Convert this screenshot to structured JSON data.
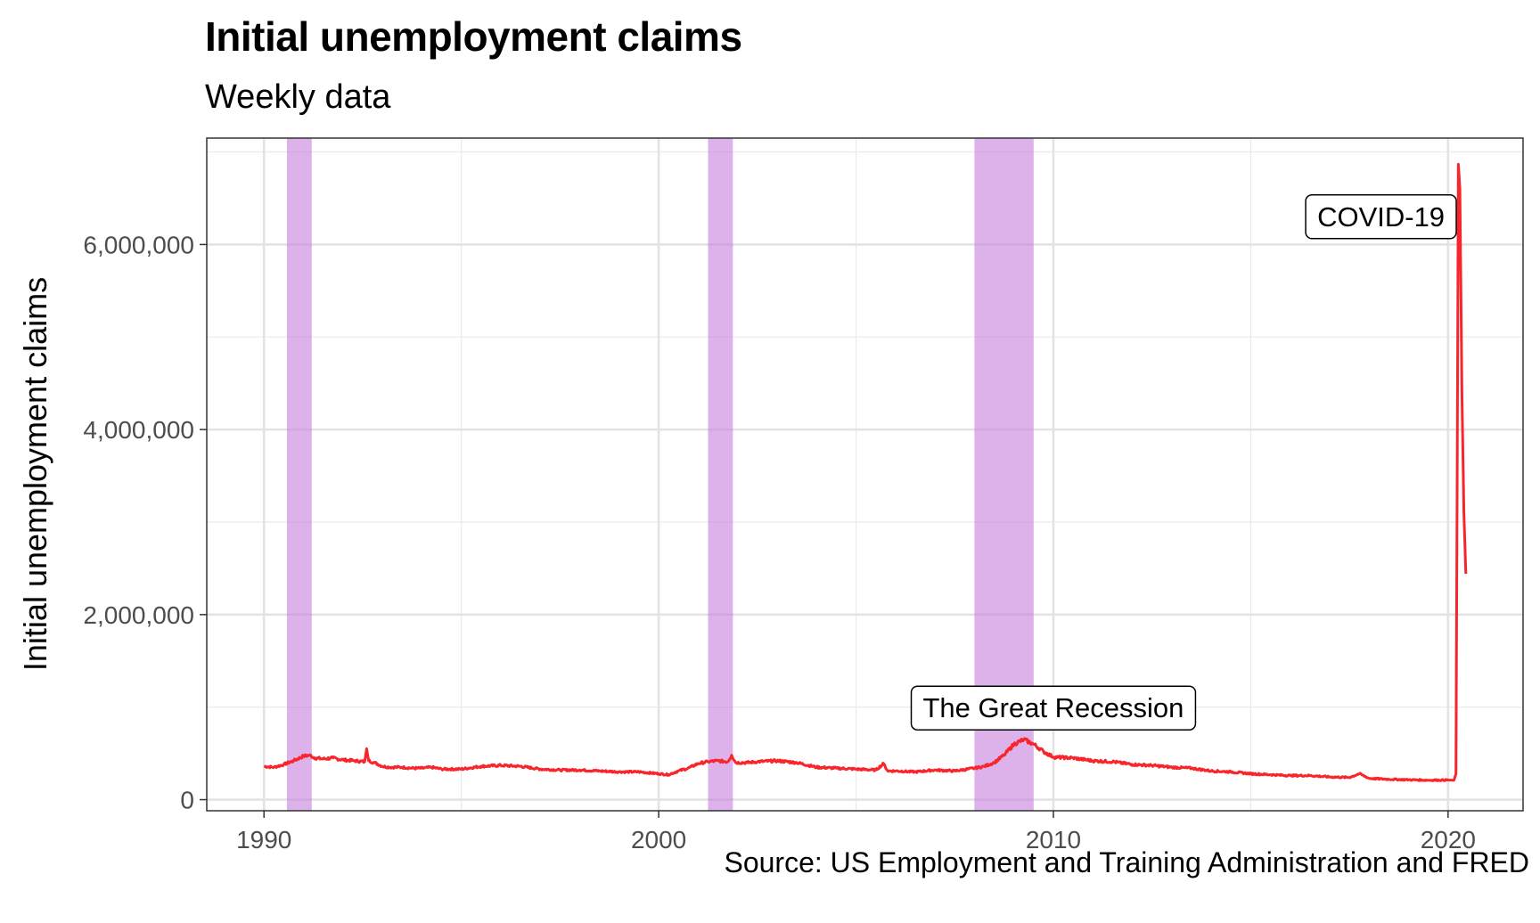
{
  "chart_data": {
    "type": "line",
    "title": "Initial unemployment claims",
    "subtitle": "Weekly data",
    "caption": "Source: US Employment and Training Administration and FRED",
    "ylabel": "Initial unemployment claims",
    "xlabel": "",
    "xlim": [
      1988.55,
      2021.9
    ],
    "ylim": [
      -120000,
      7150000
    ],
    "x_ticks": [
      1990,
      2000,
      2010,
      2020
    ],
    "x_tick_labels": [
      "1990",
      "2000",
      "2010",
      "2020"
    ],
    "y_ticks": [
      0,
      2000000,
      4000000,
      6000000
    ],
    "y_tick_labels": [
      "0",
      "2,000,000",
      "4,000,000",
      "6,000,000"
    ],
    "grid": true,
    "line_color": "#f8262b",
    "recession_color": "#c77fdc",
    "recessions": [
      {
        "start": 1990.58,
        "end": 1991.21
      },
      {
        "start": 2001.25,
        "end": 2001.88
      },
      {
        "start": 2008.0,
        "end": 2009.5
      }
    ],
    "annotations": [
      {
        "label": "The Great Recession",
        "x": 2010.0,
        "y": 990000
      },
      {
        "label": "COVID-19",
        "x": 2018.3,
        "y": 6300000
      }
    ],
    "series": [
      {
        "x": [
          1990.0,
          1990.25,
          1990.5,
          1990.75,
          1991.0,
          1991.15,
          1991.3,
          1991.5,
          1991.75,
          1992.0,
          1992.3,
          1992.55,
          1992.6,
          1992.65,
          1992.8,
          1993.0,
          1993.2,
          1993.5,
          1993.75,
          1994.0,
          1994.25,
          1994.5,
          1995.0,
          1995.5,
          1996.0,
          1996.5,
          1997.0,
          1997.5,
          1998.0,
          1998.5,
          1999.0,
          1999.5,
          2000.0,
          2000.25,
          2000.5,
          2000.75,
          2001.0,
          2001.25,
          2001.5,
          2001.75,
          2001.85,
          2001.95,
          2002.25,
          2002.5,
          2003.0,
          2003.5,
          2004.0,
          2004.5,
          2005.0,
          2005.5,
          2005.7,
          2005.8,
          2006.0,
          2006.5,
          2007.0,
          2007.5,
          2008.0,
          2008.25,
          2008.5,
          2008.75,
          2009.0,
          2009.25,
          2009.5,
          2009.75,
          2010.0,
          2010.5,
          2011.0,
          2011.5,
          2012.0,
          2012.5,
          2013.0,
          2013.5,
          2014.0,
          2014.5,
          2015.0,
          2015.5,
          2016.0,
          2016.5,
          2017.0,
          2017.5,
          2017.75,
          2018.0,
          2018.5,
          2019.0,
          2019.5,
          2020.0,
          2020.15,
          2020.2,
          2020.23,
          2020.26,
          2020.3,
          2020.35,
          2020.4,
          2020.45
        ],
        "values": [
          360000,
          350000,
          380000,
          420000,
          470000,
          480000,
          450000,
          440000,
          450000,
          430000,
          420000,
          410000,
          550000,
          420000,
          400000,
          360000,
          350000,
          350000,
          340000,
          340000,
          350000,
          330000,
          330000,
          360000,
          370000,
          360000,
          330000,
          320000,
          320000,
          310000,
          300000,
          300000,
          280000,
          270000,
          310000,
          340000,
          390000,
          410000,
          420000,
          410000,
          480000,
          400000,
          400000,
          410000,
          420000,
          400000,
          350000,
          340000,
          330000,
          320000,
          390000,
          310000,
          310000,
          300000,
          320000,
          310000,
          340000,
          360000,
          400000,
          480000,
          600000,
          650000,
          600000,
          520000,
          460000,
          450000,
          420000,
          410000,
          380000,
          370000,
          350000,
          340000,
          310000,
          300000,
          280000,
          270000,
          260000,
          260000,
          245000,
          240000,
          280000,
          230000,
          220000,
          215000,
          210000,
          212000,
          210000,
          280000,
          3300000,
          6867000,
          6600000,
          4400000,
          3100000,
          2440000
        ]
      }
    ]
  }
}
